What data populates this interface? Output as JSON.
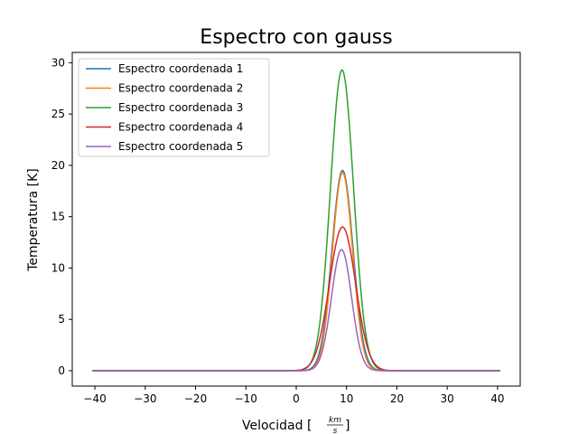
{
  "chart_data": {
    "type": "line",
    "title": "Espectro con gauss",
    "xlabel": {
      "prefix": "Velocidad [",
      "numerator": "km",
      "denominator": "s",
      "suffix": "]"
    },
    "ylabel": "Temperatura [K]",
    "xlim": [
      -44.5,
      44.5
    ],
    "ylim": [
      -1.5,
      31.0
    ],
    "xticks": [
      -40,
      -30,
      -20,
      -10,
      0,
      10,
      20,
      30,
      40
    ],
    "xtick_labels": [
      "−40",
      "−30",
      "−20",
      "−10",
      "0",
      "10",
      "20",
      "30",
      "40"
    ],
    "yticks": [
      0,
      5,
      10,
      15,
      20,
      25,
      30
    ],
    "ytick_labels": [
      "0",
      "5",
      "10",
      "15",
      "20",
      "25",
      "30"
    ],
    "x_range": [
      -40.5,
      40.5
    ],
    "legend_placement": "top-left",
    "grid": false,
    "series": [
      {
        "name": "Espectro coordenada 1",
        "color": "#1f77b4",
        "amplitude": 19.5,
        "center": 9.2,
        "sigma": 2.1
      },
      {
        "name": "Espectro coordenada 2",
        "color": "#ff7f0e",
        "amplitude": 19.3,
        "center": 9.2,
        "sigma": 2.0
      },
      {
        "name": "Espectro coordenada 3",
        "color": "#2ca02c",
        "amplitude": 29.3,
        "center": 9.1,
        "sigma": 2.3
      },
      {
        "name": "Espectro coordenada 4",
        "color": "#d62728",
        "amplitude": 14.0,
        "center": 9.2,
        "sigma": 2.6
      },
      {
        "name": "Espectro coordenada 5",
        "color": "#9467bd",
        "amplitude": 11.8,
        "center": 9.0,
        "sigma": 2.0
      }
    ]
  }
}
